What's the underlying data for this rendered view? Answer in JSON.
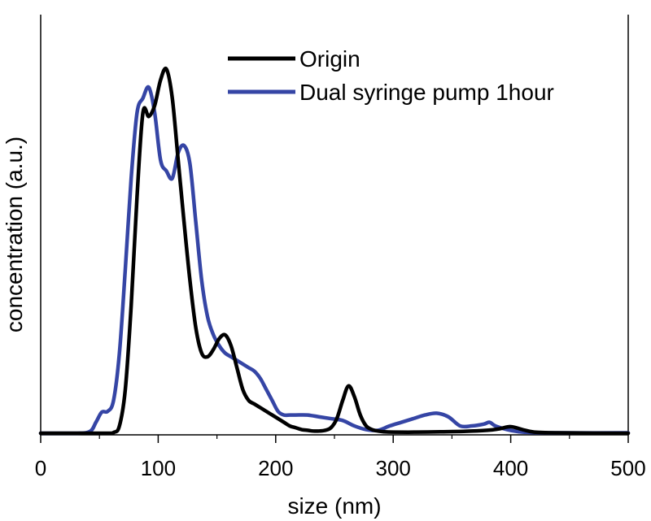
{
  "chart_data": {
    "type": "line",
    "title": "",
    "xlabel": "size (nm)",
    "ylabel": "concentration (a.u.)",
    "xlim": [
      0,
      500
    ],
    "ylim": [
      0,
      1.0
    ],
    "xticks": [
      0,
      100,
      200,
      300,
      400,
      500
    ],
    "yticks_shown": false,
    "grid": false,
    "legend_position": "top-right",
    "series": [
      {
        "name": "Origin",
        "color": "#000000",
        "x": [
          0,
          55,
          62,
          67,
          72,
          77,
          82,
          87,
          92,
          97,
          102,
          107,
          112,
          117,
          122,
          127,
          132,
          137,
          142,
          147,
          152,
          157,
          162,
          167,
          172,
          177,
          182,
          187,
          192,
          197,
          202,
          207,
          212,
          217,
          222,
          227,
          232,
          237,
          242,
          247,
          252,
          257,
          262,
          267,
          272,
          277,
          282,
          287,
          292,
          300,
          320,
          340,
          360,
          380,
          390,
          400,
          410,
          420,
          440,
          500
        ],
        "y": [
          0,
          0,
          0.002,
          0.02,
          0.12,
          0.35,
          0.65,
          0.88,
          0.87,
          0.9,
          0.97,
          1.0,
          0.92,
          0.75,
          0.58,
          0.42,
          0.29,
          0.22,
          0.21,
          0.23,
          0.26,
          0.27,
          0.24,
          0.18,
          0.12,
          0.09,
          0.08,
          0.07,
          0.06,
          0.05,
          0.04,
          0.03,
          0.02,
          0.015,
          0.01,
          0.008,
          0.006,
          0.006,
          0.008,
          0.015,
          0.04,
          0.09,
          0.13,
          0.1,
          0.05,
          0.02,
          0.01,
          0.006,
          0.004,
          0.003,
          0.003,
          0.004,
          0.005,
          0.008,
          0.012,
          0.018,
          0.01,
          0.003,
          0.001,
          0
        ]
      },
      {
        "name": "Dual syringe pump 1hour",
        "color": "#3545A5",
        "x": [
          0,
          30,
          42,
          47,
          52,
          57,
          62,
          67,
          72,
          77,
          82,
          87,
          92,
          97,
          102,
          107,
          112,
          117,
          122,
          127,
          132,
          137,
          142,
          147,
          152,
          157,
          162,
          167,
          172,
          177,
          182,
          187,
          192,
          197,
          202,
          207,
          212,
          217,
          227,
          237,
          247,
          257,
          267,
          277,
          287,
          297,
          307,
          317,
          327,
          337,
          347,
          357,
          367,
          377,
          382,
          387,
          397,
          407,
          417,
          447,
          500
        ],
        "y": [
          0,
          0,
          0.005,
          0.03,
          0.058,
          0.06,
          0.09,
          0.22,
          0.45,
          0.7,
          0.88,
          0.92,
          0.95,
          0.88,
          0.75,
          0.72,
          0.7,
          0.77,
          0.79,
          0.74,
          0.58,
          0.42,
          0.32,
          0.27,
          0.24,
          0.22,
          0.21,
          0.2,
          0.19,
          0.18,
          0.17,
          0.15,
          0.12,
          0.09,
          0.06,
          0.05,
          0.05,
          0.05,
          0.05,
          0.045,
          0.04,
          0.035,
          0.02,
          0.01,
          0.008,
          0.02,
          0.03,
          0.04,
          0.05,
          0.055,
          0.045,
          0.02,
          0.02,
          0.025,
          0.03,
          0.02,
          0.01,
          0.004,
          0.002,
          0.001,
          0.001
        ]
      }
    ]
  }
}
